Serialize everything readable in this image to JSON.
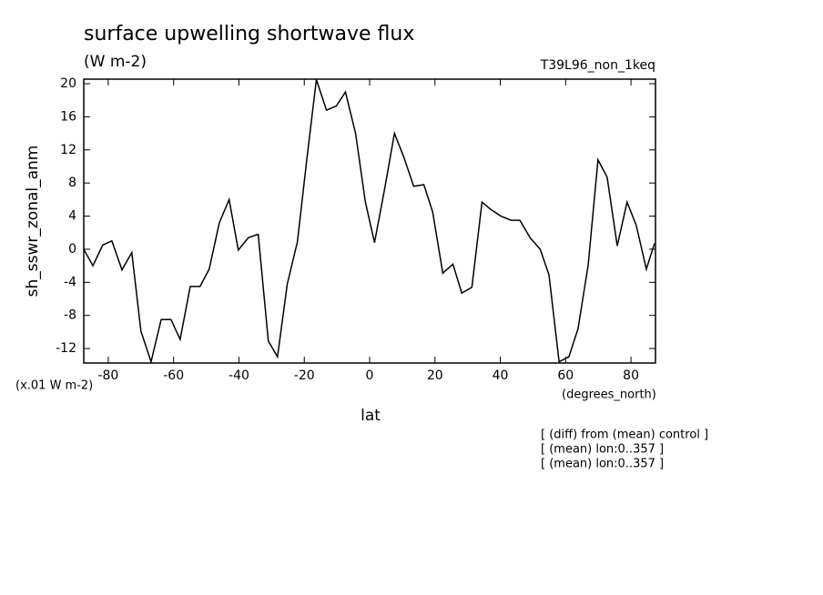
{
  "chart_data": {
    "type": "line",
    "title": "surface upwelling shortwave flux",
    "subtitle": "(W m-2)",
    "run_label": "T39L96_non_1keq",
    "y_label": "sh_sswr_zonal_anm",
    "y_units": "(x.01 W m-2)",
    "x_label": "lat",
    "x_units": "(degrees_north)",
    "annotations": [
      "[ (diff) from (mean) control ]",
      "[ (mean) lon:0..357 ]",
      "[ (mean) lon:0..357 ]"
    ],
    "xlim": [
      -87.5,
      87.5
    ],
    "ylim": [
      -13.75,
      20.55
    ],
    "xticks": [
      -80,
      -60,
      -40,
      -20,
      0,
      20,
      40,
      60,
      80
    ],
    "yticks": [
      -12,
      -8,
      -4,
      0,
      4,
      8,
      12,
      16,
      20
    ],
    "series": [
      {
        "color": "#000000",
        "x": [
          -87.5,
          -84.7,
          -81.7,
          -78.9,
          -75.8,
          -72.8,
          -70,
          -66.9,
          -63.8,
          -60.8,
          -58,
          -54.9,
          -51.9,
          -49.1,
          -46,
          -43,
          -40.2,
          -37.1,
          -34.1,
          -31,
          -28.2,
          -25.2,
          -22.1,
          -19.3,
          -16.3,
          -13.2,
          -10.2,
          -7.4,
          -4.3,
          -1.3,
          1.5,
          4.6,
          7.6,
          10.4,
          13.5,
          16.6,
          19.3,
          22.4,
          25.5,
          28.2,
          31.3,
          34.4,
          37.1,
          40.2,
          43.3,
          46,
          49.1,
          52.2,
          54.9,
          58,
          61,
          63.8,
          66.9,
          69.9,
          72.7,
          75.8,
          78.8,
          81.6,
          84.7,
          87.2
        ],
        "values": [
          0,
          -2,
          0.5,
          1,
          -2.5,
          -0.4,
          -9.9,
          -13.6,
          -8.5,
          -8.5,
          -10.9,
          -4.5,
          -4.5,
          -2.4,
          3.2,
          6,
          -0.1,
          1.4,
          1.8,
          -11.1,
          -13,
          -4.2,
          0.9,
          10.6,
          20.5,
          16.8,
          17.3,
          19,
          14,
          5.7,
          0.8,
          7.3,
          14,
          11.2,
          7.6,
          7.8,
          4.5,
          -2.9,
          -1.8,
          -5.3,
          -4.6,
          5.7,
          4.8,
          4,
          3.5,
          3.5,
          1.4,
          0,
          -3.1,
          -13.6,
          -13,
          -9.6,
          -1.9,
          10.8,
          8.7,
          0.4,
          5.7,
          2.9,
          -2.4,
          0.7
        ]
      }
    ]
  }
}
